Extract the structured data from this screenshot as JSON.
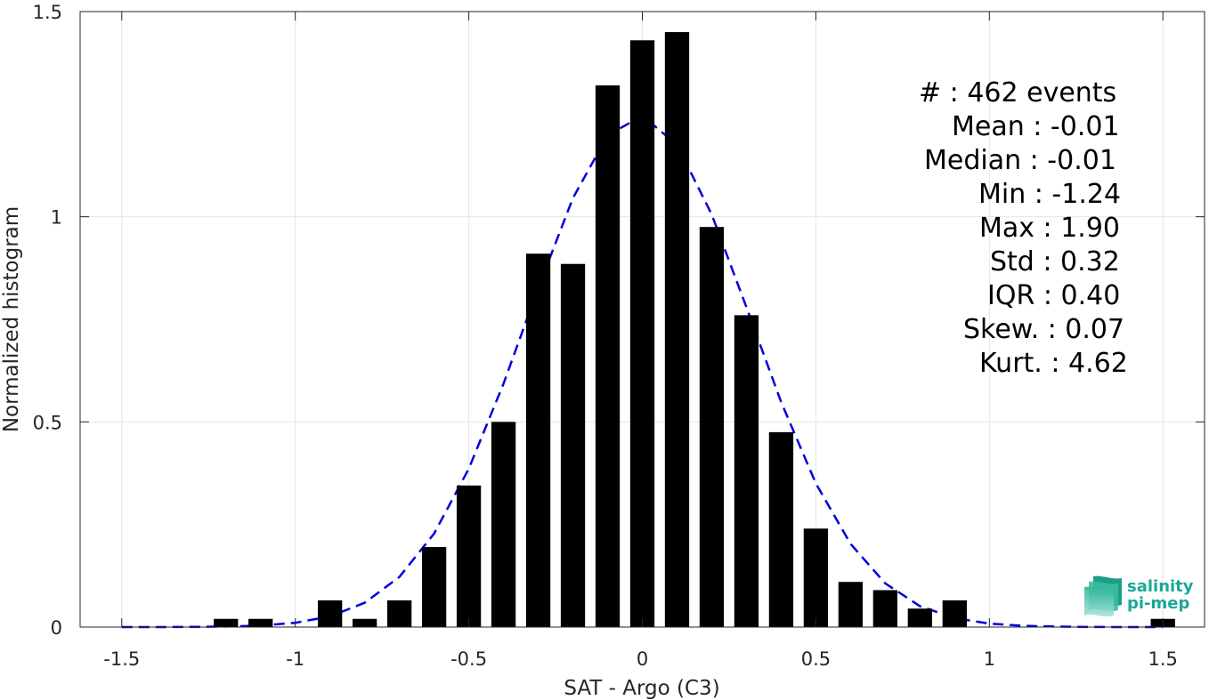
{
  "chart_data": {
    "type": "bar",
    "xlabel": "SAT - Argo (C3)",
    "ylabel": "Normalized histogram",
    "xlim": [
      -1.62,
      1.62
    ],
    "ylim": [
      0,
      1.5
    ],
    "xticks": [
      -1.5,
      -1,
      -0.5,
      0,
      0.5,
      1,
      1.5
    ],
    "xtick_labels": [
      "-1.5",
      "-1",
      "-0.5",
      "0",
      "0.5",
      "1",
      "1.5"
    ],
    "yticks": [
      0,
      0.5,
      1,
      1.5
    ],
    "ytick_labels": [
      "0",
      "0.5",
      "1",
      "1.5"
    ],
    "grid": true,
    "bar_color": "#000000",
    "bar_width": 0.07,
    "bars": {
      "x": [
        -1.2,
        -1.1,
        -0.9,
        -0.8,
        -0.7,
        -0.6,
        -0.5,
        -0.4,
        -0.3,
        -0.2,
        -0.1,
        0.0,
        0.1,
        0.2,
        0.3,
        0.4,
        0.5,
        0.6,
        0.7,
        0.8,
        0.9,
        1.5
      ],
      "values": [
        0.02,
        0.02,
        0.065,
        0.02,
        0.065,
        0.195,
        0.345,
        0.5,
        0.91,
        0.885,
        1.32,
        1.43,
        1.45,
        0.975,
        0.76,
        0.475,
        0.24,
        0.11,
        0.09,
        0.045,
        0.065,
        0.02
      ]
    },
    "fit": {
      "type": "gaussian",
      "style": "dashed",
      "color": "#0000dd",
      "mean": -0.01,
      "std": 0.32,
      "x_range": [
        -1.5,
        1.5
      ]
    }
  },
  "stats": [
    {
      "label": "#  : 462 events"
    },
    {
      "label": "Mean : -0.01"
    },
    {
      "label": "Median : -0.01"
    },
    {
      "label": "Min : -1.24"
    },
    {
      "label": "Max : 1.90"
    },
    {
      "label": "Std : 0.32"
    },
    {
      "label": "IQR : 0.40"
    },
    {
      "label": "Skew. : 0.07"
    },
    {
      "label": "Kurt. : 4.62"
    }
  ],
  "logo": {
    "line1": "salinity",
    "line2": "pi-mep",
    "color": "#1ba797"
  }
}
